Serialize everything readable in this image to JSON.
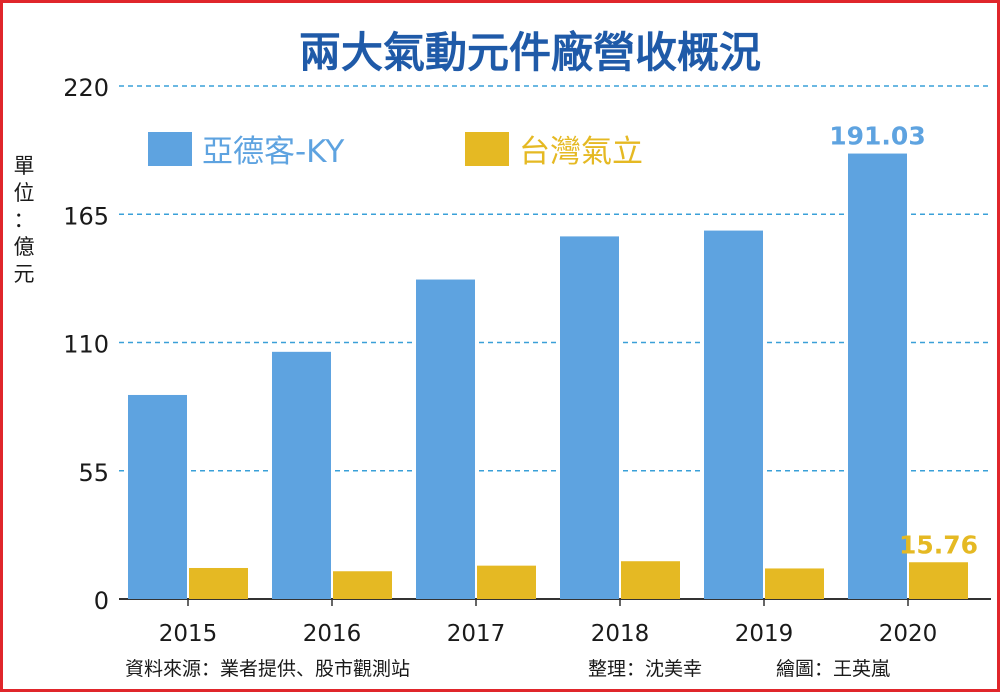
{
  "chart_data": {
    "type": "bar",
    "title": "兩大氣動元件廠營收概況",
    "ylabel_chars": [
      "單",
      "位",
      "：",
      "億",
      "元"
    ],
    "ylim": [
      0,
      220
    ],
    "yticks": [
      0,
      55,
      110,
      165,
      220
    ],
    "grid": "horizontal-dashed",
    "legend_position": "top",
    "categories": [
      "2015",
      "2016",
      "2017",
      "2018",
      "2019",
      "2020"
    ],
    "series": [
      {
        "name": "亞德客-KY",
        "color": "#5ea3e0",
        "values": [
          87.5,
          106.0,
          137.0,
          155.5,
          158.0,
          191.03
        ],
        "labels": [
          "",
          "",
          "",
          "",
          "",
          "191.03"
        ]
      },
      {
        "name": "台灣氣立",
        "color": "#e5b923",
        "values": [
          13.3,
          11.9,
          14.3,
          16.2,
          13.1,
          15.76
        ],
        "labels": [
          "",
          "",
          "",
          "",
          "",
          "15.76"
        ]
      }
    ]
  },
  "footer": {
    "source": "資料來源：業者提供、股市觀測站",
    "editor": "整理：沈美幸",
    "illustrator": "繪圖：王英嵐"
  },
  "colors": {
    "title": "#1f5aa8",
    "grid": "#3aa0d8",
    "border": "#e0262b"
  }
}
